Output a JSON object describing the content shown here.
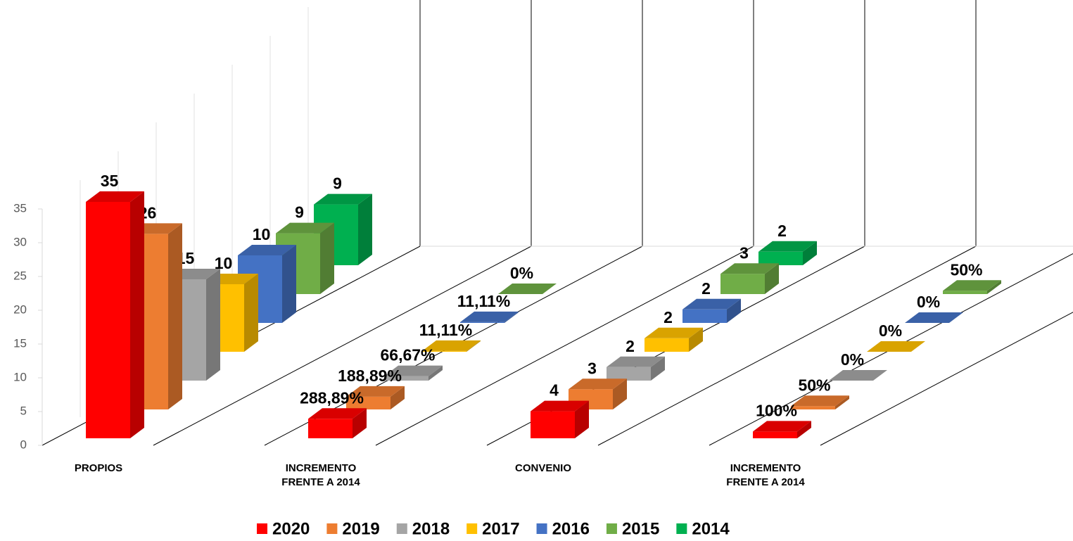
{
  "chart_data": {
    "type": "bar3d",
    "categories": [
      "PROPIOS",
      "INCREMENTO FRENTE A 2014",
      "CONVENIO",
      "INCREMENTO FRENTE A 2014"
    ],
    "ylim": [
      0,
      35
    ],
    "yticks": [
      0,
      5,
      10,
      15,
      20,
      25,
      30,
      35
    ],
    "grid": false,
    "legend": "bottom",
    "series": [
      {
        "name": "2020",
        "color": "#ff0000",
        "values": [
          35,
          2.8889,
          4,
          1
        ],
        "value_labels": [
          "35",
          "288,89%",
          "4",
          "100%"
        ]
      },
      {
        "name": "2019",
        "color": "#ed7d31",
        "values": [
          26,
          1.8889,
          3,
          0.5
        ],
        "value_labels": [
          "26",
          "188,89%",
          "3",
          "50%"
        ]
      },
      {
        "name": "2018",
        "color": "#a5a5a5",
        "values": [
          15,
          0.6667,
          2,
          0
        ],
        "value_labels": [
          "15",
          "66,67%",
          "2",
          "0%"
        ]
      },
      {
        "name": "2017",
        "color": "#ffc000",
        "values": [
          10,
          0.1111,
          2,
          0
        ],
        "value_labels": [
          "10",
          "11,11%",
          "2",
          "0%"
        ]
      },
      {
        "name": "2016",
        "color": "#4472c4",
        "values": [
          10,
          0.1111,
          2,
          0
        ],
        "value_labels": [
          "10",
          "11,11%",
          "2",
          "0%"
        ]
      },
      {
        "name": "2015",
        "color": "#70ad47",
        "values": [
          9,
          0,
          3,
          0.5
        ],
        "value_labels": [
          "9",
          "0%",
          "3",
          "50%"
        ]
      },
      {
        "name": "2014",
        "color": "#00b050",
        "values": [
          9,
          null,
          2,
          null
        ],
        "value_labels": [
          "9",
          null,
          "2",
          null
        ]
      }
    ]
  }
}
